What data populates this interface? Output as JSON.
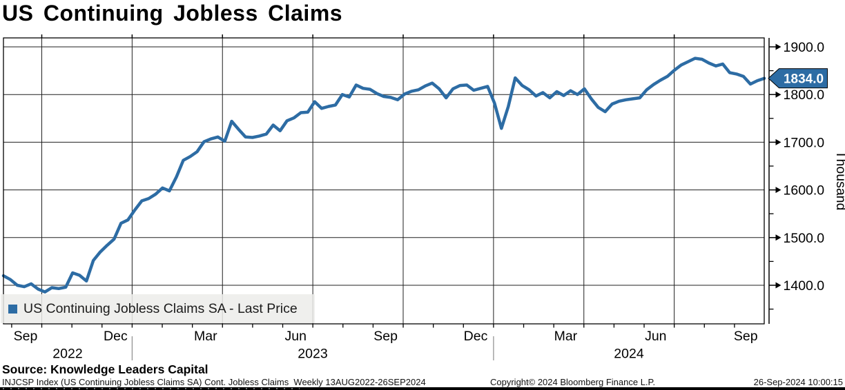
{
  "title": "US Continuing Jobless Claims",
  "legend": {
    "label": "US Continuing Jobless Claims SA - Last Price"
  },
  "last_price": {
    "value": "1834.0"
  },
  "y_axis": {
    "unit": "Thousand",
    "tick_labels": [
      "1900.0",
      "1800.0",
      "1700.0",
      "1600.0",
      "1500.0",
      "1400.0"
    ]
  },
  "x_axis": {
    "month_labels": [
      "Sep",
      "Dec",
      "Mar",
      "Jun",
      "Sep",
      "Dec",
      "Mar",
      "Jun",
      "Sep"
    ],
    "year_labels": [
      "2022",
      "2023",
      "2024"
    ]
  },
  "source": "Source: Knowledge Leaders Capital",
  "footer": {
    "security_info": "INJCSP Index (US Continuing Jobless Claims SA) Cont. Jobless Claims  Weekly 13AUG2022-26SEP2024",
    "copyright": "Copyright© 2024 Bloomberg Finance L.P.",
    "timestamp": "26-Sep-2024 10:00:15"
  },
  "colors": {
    "line": "#2d6ca4",
    "badge_bg": "#2d6ca4",
    "badge_text": "#ffffff",
    "grid": "#1f1f1f",
    "axis": "#000000",
    "year_separator": "#8c8c8c"
  },
  "chart_data": {
    "type": "line",
    "title": "US Continuing Jobless Claims",
    "series_name": "US Continuing Jobless Claims SA - Last Price",
    "unit": "Thousand",
    "frequency": "weekly",
    "x_start": "13AUG2022",
    "x_end": "26SEP2024",
    "x_tick_labels": [
      "Sep",
      "Dec",
      "Mar",
      "Jun",
      "Sep",
      "Dec",
      "Mar",
      "Jun",
      "Sep"
    ],
    "x_year_labels": [
      "2022",
      "2023",
      "2024"
    ],
    "y_ticks": [
      1900,
      1800,
      1700,
      1600,
      1500,
      1400
    ],
    "y_minor_ticks": [
      1850,
      1750,
      1650,
      1550,
      1450,
      1350
    ],
    "ylim": [
      1319,
      1919
    ],
    "grid": "both",
    "legend_position": "bottom-left",
    "last_value": 1834.0,
    "values": [
      1420,
      1412,
      1400,
      1397,
      1403,
      1392,
      1386,
      1395,
      1393,
      1396,
      1426,
      1421,
      1409,
      1452,
      1470,
      1484,
      1497,
      1530,
      1537,
      1558,
      1577,
      1582,
      1591,
      1604,
      1598,
      1627,
      1662,
      1670,
      1680,
      1701,
      1707,
      1711,
      1702,
      1744,
      1727,
      1711,
      1710,
      1713,
      1717,
      1736,
      1724,
      1745,
      1751,
      1762,
      1763,
      1785,
      1771,
      1775,
      1778,
      1800,
      1795,
      1820,
      1813,
      1811,
      1802,
      1796,
      1794,
      1789,
      1801,
      1807,
      1810,
      1818,
      1824,
      1812,
      1793,
      1812,
      1819,
      1820,
      1809,
      1813,
      1817,
      1782,
      1729,
      1775,
      1835,
      1819,
      1810,
      1797,
      1804,
      1793,
      1806,
      1798,
      1808,
      1800,
      1812,
      1791,
      1773,
      1764,
      1780,
      1786,
      1789,
      1791,
      1793,
      1810,
      1821,
      1830,
      1838,
      1851,
      1862,
      1869,
      1876,
      1874,
      1866,
      1860,
      1864,
      1846,
      1843,
      1838,
      1822,
      1829,
      1834
    ]
  }
}
